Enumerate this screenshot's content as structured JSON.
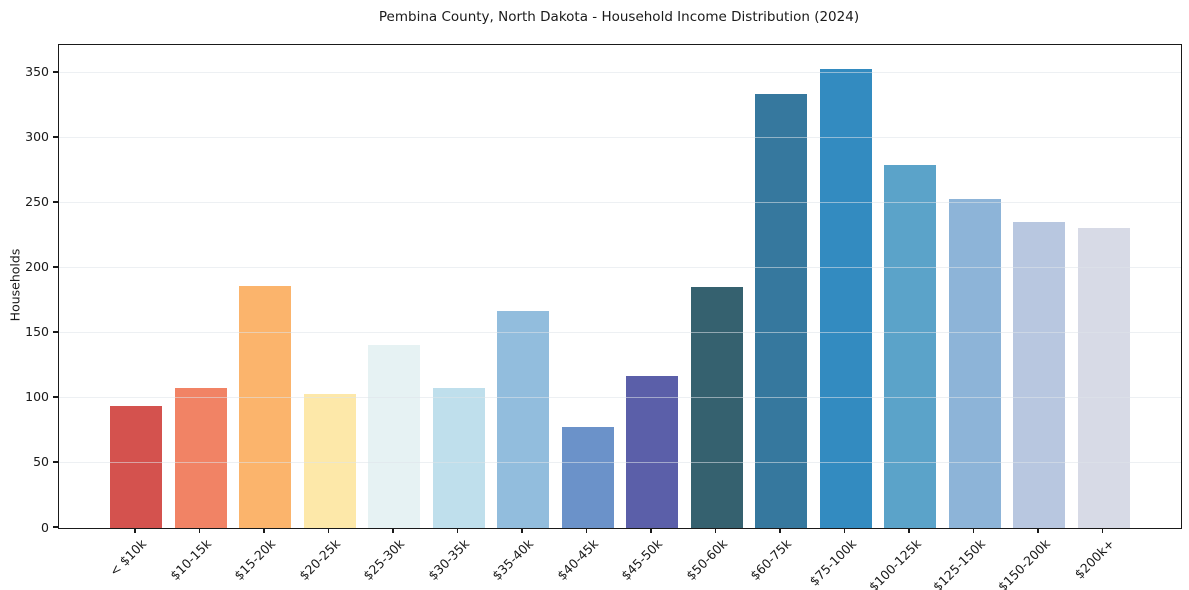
{
  "page": {
    "background": "#ffffff"
  },
  "chart_data": {
    "type": "bar",
    "title": "Pembina County, North Dakota - Household Income Distribution (2024)",
    "xlabel": "",
    "ylabel": "Households",
    "categories": [
      "< $10k",
      "$10-15k",
      "$15-20k",
      "$20-25k",
      "$25-30k",
      "$30-35k",
      "$35-40k",
      "$40-45k",
      "$45-50k",
      "$50-60k",
      "$60-75k",
      "$75-100k",
      "$100-125k",
      "$125-150k",
      "$150-200k",
      "$200k+"
    ],
    "values": [
      94,
      108,
      186,
      103,
      141,
      108,
      167,
      78,
      117,
      185,
      334,
      353,
      279,
      253,
      235,
      231
    ],
    "bar_colors": [
      "#d4524e",
      "#f18365",
      "#fbb46c",
      "#fde8a9",
      "#e6f2f3",
      "#bfdfec",
      "#92bddd",
      "#6b92c9",
      "#5b5fa9",
      "#35616f",
      "#36789e",
      "#338bc0",
      "#5ba3c9",
      "#8db4d8",
      "#b8c7e0",
      "#d7dae6"
    ],
    "yticks": [
      0,
      50,
      100,
      150,
      200,
      250,
      300,
      350
    ],
    "ylim": [
      0,
      371.5
    ],
    "grid": true,
    "grid_color": "rgba(223,227,233,0.55)",
    "axis_color": "#1a1a1a",
    "text_color": "#1a1a1a",
    "legend": null
  }
}
